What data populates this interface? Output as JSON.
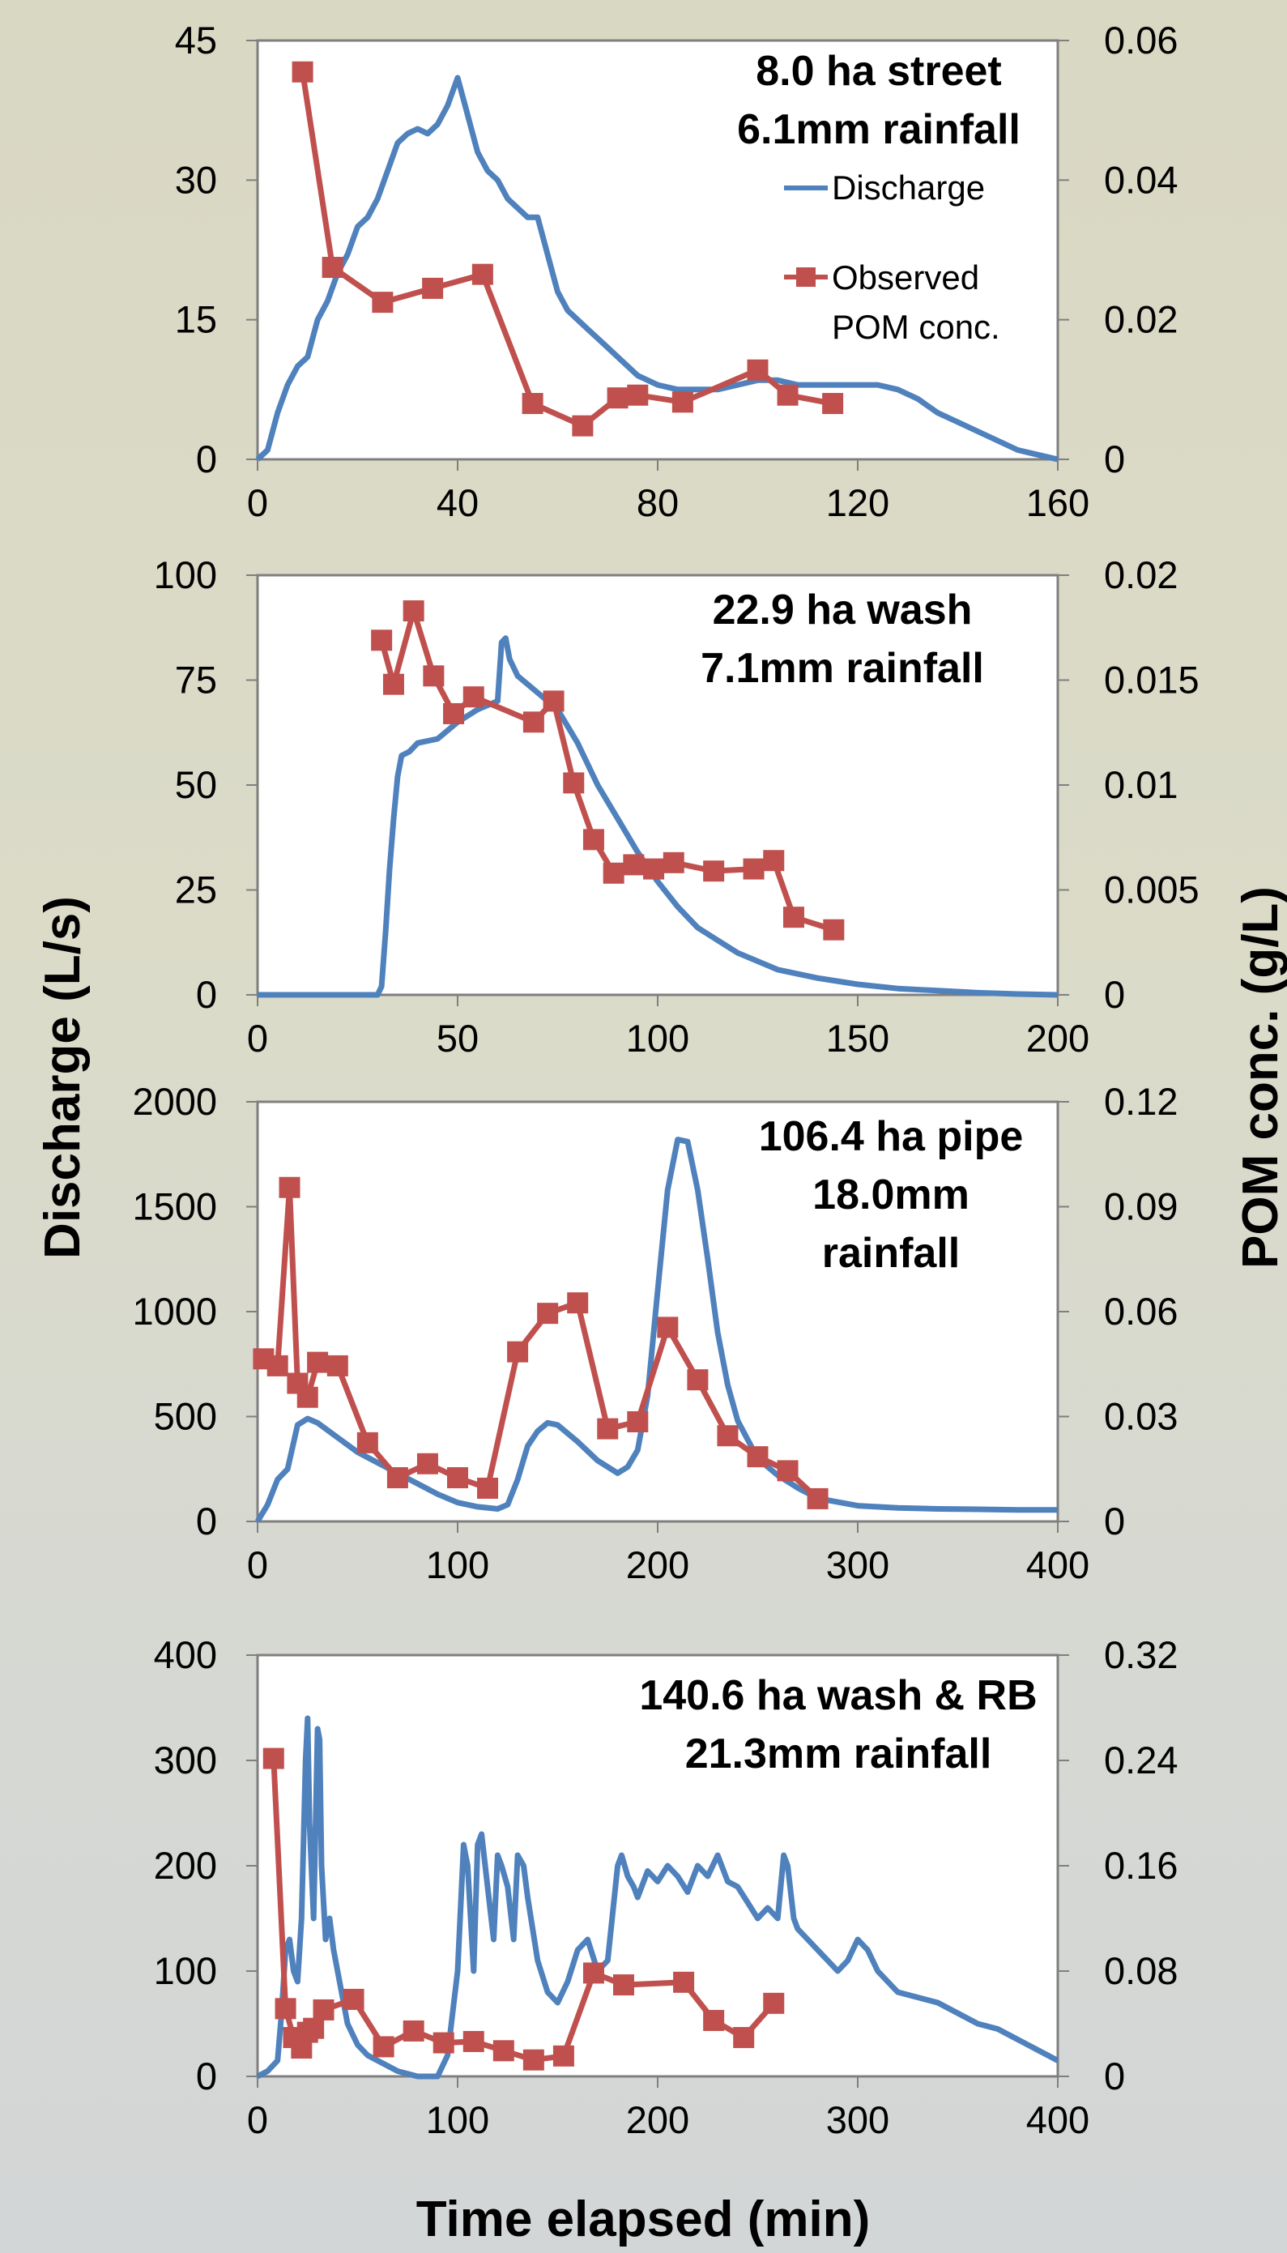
{
  "axis_titles": {
    "left": "Discharge (L/s)",
    "right": "POM conc.  (g/L)",
    "bottom": "Time elapsed (min)"
  },
  "legend": {
    "discharge": "Discharge",
    "observed_line1": "Observed",
    "observed_line2": "POM conc."
  },
  "colors": {
    "discharge": "#4f81bd",
    "observed": "#c0504d",
    "frame": "#7f7f7f",
    "plot_bg": "#ffffff"
  },
  "chart_data": [
    {
      "type": "line",
      "title_lines": [
        "8.0 ha street",
        "6.1mm rainfall"
      ],
      "xlim": [
        0,
        160
      ],
      "xticks": [
        "0",
        "40",
        "80",
        "120",
        "160"
      ],
      "ylim_left": [
        0,
        45
      ],
      "yticks_left": [
        "0",
        "15",
        "30",
        "45"
      ],
      "ylim_right": [
        0,
        0.06
      ],
      "yticks_right": [
        "0",
        "0.02",
        "0.04",
        "0.06"
      ],
      "series": [
        {
          "name": "Discharge",
          "axis": "left",
          "x": [
            0,
            2,
            4,
            6,
            8,
            10,
            12,
            14,
            16,
            18,
            20,
            22,
            24,
            26,
            28,
            30,
            32,
            34,
            36,
            38,
            40,
            42,
            44,
            46,
            48,
            50,
            52,
            54,
            56,
            58,
            60,
            62,
            64,
            66,
            68,
            70,
            72,
            74,
            76,
            78,
            80,
            84,
            88,
            92,
            96,
            100,
            104,
            108,
            112,
            116,
            120,
            124,
            128,
            132,
            136,
            140,
            144,
            148,
            152,
            156,
            160
          ],
          "values": [
            0,
            1,
            5,
            8,
            10,
            11,
            15,
            17,
            20,
            22,
            25,
            26,
            28,
            31,
            34,
            35,
            35.5,
            35,
            36,
            38,
            41,
            37,
            33,
            31,
            30,
            28,
            27,
            26,
            26,
            22,
            18,
            16,
            15,
            14,
            13,
            12,
            11,
            10,
            9,
            8.5,
            8,
            7.5,
            7.5,
            7.5,
            8,
            8.5,
            8.5,
            8,
            8,
            8,
            8,
            8,
            7.5,
            6.5,
            5,
            4,
            3,
            2,
            1,
            0.5,
            0
          ]
        },
        {
          "name": "Observed POM conc.",
          "axis": "right",
          "x": [
            9,
            15,
            25,
            35,
            45,
            55,
            65,
            72,
            76,
            85,
            100,
            106,
            115
          ],
          "values": [
            0.0555,
            0.0275,
            0.0225,
            0.0245,
            0.0265,
            0.008,
            0.0048,
            0.0088,
            0.0092,
            0.0082,
            0.0128,
            0.0092,
            0.008
          ]
        }
      ]
    },
    {
      "type": "line",
      "title_lines": [
        "22.9 ha wash",
        "7.1mm rainfall"
      ],
      "xlim": [
        0,
        200
      ],
      "xticks": [
        "0",
        "50",
        "100",
        "150",
        "200"
      ],
      "ylim_left": [
        0,
        100
      ],
      "yticks_left": [
        "0",
        "25",
        "50",
        "75",
        "100"
      ],
      "ylim_right": [
        0,
        0.02
      ],
      "yticks_right": [
        "0",
        "0.005",
        "0.01",
        "0.015",
        "0.02"
      ],
      "series": [
        {
          "name": "Discharge",
          "axis": "left",
          "x": [
            0,
            10,
            20,
            30,
            31,
            32,
            33,
            34,
            35,
            36,
            38,
            40,
            45,
            50,
            55,
            60,
            61,
            62,
            63,
            65,
            70,
            75,
            80,
            85,
            90,
            95,
            100,
            105,
            110,
            115,
            120,
            130,
            140,
            150,
            160,
            170,
            180,
            190,
            200
          ],
          "values": [
            0,
            0,
            0,
            0,
            2,
            15,
            30,
            42,
            52,
            57,
            58,
            60,
            61,
            65,
            68,
            70,
            84,
            85,
            80,
            76,
            72,
            68,
            60,
            50,
            42,
            34,
            27,
            21,
            16,
            13,
            10,
            6,
            4,
            2.5,
            1.5,
            1,
            0.5,
            0.2,
            0
          ]
        },
        {
          "name": "Observed POM conc.",
          "axis": "right",
          "x": [
            31,
            34,
            39,
            44,
            49,
            54,
            69,
            74,
            79,
            84,
            89,
            94,
            99,
            104,
            114,
            124,
            129,
            134,
            144
          ],
          "values": [
            0.0169,
            0.0148,
            0.0183,
            0.0152,
            0.0134,
            0.0142,
            0.013,
            0.014,
            0.0101,
            0.0074,
            0.0058,
            0.0062,
            0.006,
            0.0063,
            0.0059,
            0.006,
            0.0064,
            0.0037,
            0.0031
          ]
        }
      ]
    },
    {
      "type": "line",
      "title_lines": [
        "106.4 ha pipe",
        "18.0mm",
        "rainfall"
      ],
      "xlim": [
        0,
        400
      ],
      "xticks": [
        "0",
        "100",
        "200",
        "300",
        "400"
      ],
      "ylim_left": [
        0,
        2000
      ],
      "yticks_left": [
        "0",
        "500",
        "1000",
        "1500",
        "2000"
      ],
      "ylim_right": [
        0,
        0.12
      ],
      "yticks_right": [
        "0",
        "0.03",
        "0.06",
        "0.09",
        "0.12"
      ],
      "series": [
        {
          "name": "Discharge",
          "axis": "left",
          "x": [
            0,
            5,
            10,
            15,
            20,
            25,
            30,
            40,
            50,
            60,
            70,
            80,
            90,
            100,
            110,
            120,
            125,
            130,
            135,
            140,
            145,
            150,
            160,
            170,
            180,
            185,
            190,
            195,
            200,
            205,
            210,
            215,
            220,
            225,
            230,
            235,
            240,
            250,
            260,
            270,
            280,
            300,
            320,
            340,
            360,
            380,
            400
          ],
          "values": [
            0,
            80,
            200,
            250,
            460,
            490,
            470,
            400,
            330,
            280,
            230,
            180,
            130,
            90,
            70,
            60,
            80,
            200,
            360,
            430,
            470,
            460,
            380,
            290,
            230,
            260,
            340,
            600,
            1100,
            1580,
            1820,
            1810,
            1580,
            1250,
            900,
            650,
            480,
            300,
            220,
            160,
            110,
            75,
            65,
            60,
            58,
            55,
            55
          ]
        },
        {
          "name": "Observed POM conc.",
          "axis": "right",
          "x": [
            3,
            10,
            16,
            20,
            25,
            30,
            40,
            55,
            70,
            85,
            100,
            115,
            130,
            145,
            160,
            175,
            190,
            205,
            220,
            235,
            250,
            265,
            280
          ],
          "values": [
            0.0465,
            0.0445,
            0.0955,
            0.0395,
            0.0355,
            0.0455,
            0.0445,
            0.0225,
            0.0125,
            0.0165,
            0.0125,
            0.0095,
            0.0485,
            0.0595,
            0.0625,
            0.0265,
            0.0285,
            0.0555,
            0.0405,
            0.0245,
            0.0185,
            0.0145,
            0.0065
          ]
        }
      ]
    },
    {
      "type": "line",
      "title_lines": [
        "140.6 ha wash & RB",
        "21.3mm rainfall"
      ],
      "xlim": [
        0,
        400
      ],
      "xticks": [
        "0",
        "100",
        "200",
        "300",
        "400"
      ],
      "ylim_left": [
        0,
        400
      ],
      "yticks_left": [
        "0",
        "100",
        "200",
        "300",
        "400"
      ],
      "ylim_right": [
        0,
        0.32
      ],
      "yticks_right": [
        "0",
        "0.08",
        "0.16",
        "0.24",
        "0.32"
      ],
      "series": [
        {
          "name": "Discharge",
          "axis": "left",
          "x": [
            0,
            5,
            10,
            12,
            14,
            16,
            18,
            20,
            22,
            24,
            25,
            26,
            28,
            30,
            31,
            32,
            34,
            36,
            38,
            40,
            42,
            45,
            50,
            55,
            60,
            65,
            70,
            80,
            90,
            95,
            100,
            103,
            105,
            108,
            110,
            112,
            115,
            118,
            120,
            122,
            125,
            128,
            130,
            133,
            135,
            140,
            145,
            150,
            155,
            160,
            165,
            170,
            175,
            180,
            182,
            185,
            188,
            190,
            195,
            200,
            205,
            210,
            215,
            220,
            225,
            230,
            235,
            240,
            245,
            250,
            255,
            260,
            263,
            265,
            268,
            270,
            275,
            280,
            285,
            290,
            295,
            300,
            305,
            310,
            315,
            320,
            330,
            340,
            350,
            360,
            370,
            380,
            390,
            400
          ],
          "values": [
            0,
            5,
            15,
            60,
            120,
            130,
            100,
            90,
            150,
            300,
            340,
            240,
            150,
            330,
            320,
            200,
            130,
            150,
            120,
            100,
            80,
            50,
            30,
            20,
            15,
            10,
            5,
            0,
            0,
            20,
            100,
            220,
            200,
            100,
            220,
            230,
            180,
            130,
            210,
            200,
            180,
            130,
            210,
            200,
            170,
            110,
            80,
            70,
            90,
            120,
            130,
            100,
            110,
            200,
            210,
            190,
            180,
            170,
            195,
            185,
            200,
            190,
            175,
            200,
            190,
            210,
            185,
            180,
            165,
            150,
            160,
            150,
            210,
            200,
            150,
            140,
            130,
            120,
            110,
            100,
            110,
            130,
            120,
            100,
            90,
            80,
            75,
            70,
            60,
            50,
            45,
            35,
            25,
            15
          ]
        },
        {
          "name": "Observed POM conc.",
          "axis": "right",
          "x": [
            8,
            14,
            18,
            22,
            25,
            28,
            33,
            48,
            63,
            78,
            93,
            108,
            123,
            138,
            153,
            168,
            183,
            213,
            228,
            243,
            258
          ],
          "values": [
            0.2415,
            0.0515,
            0.0295,
            0.0215,
            0.0335,
            0.0365,
            0.0505,
            0.0585,
            0.0225,
            0.0345,
            0.0255,
            0.0265,
            0.0195,
            0.0125,
            0.0155,
            0.0785,
            0.0695,
            0.0715,
            0.0425,
            0.0295,
            0.0555
          ]
        }
      ]
    }
  ]
}
